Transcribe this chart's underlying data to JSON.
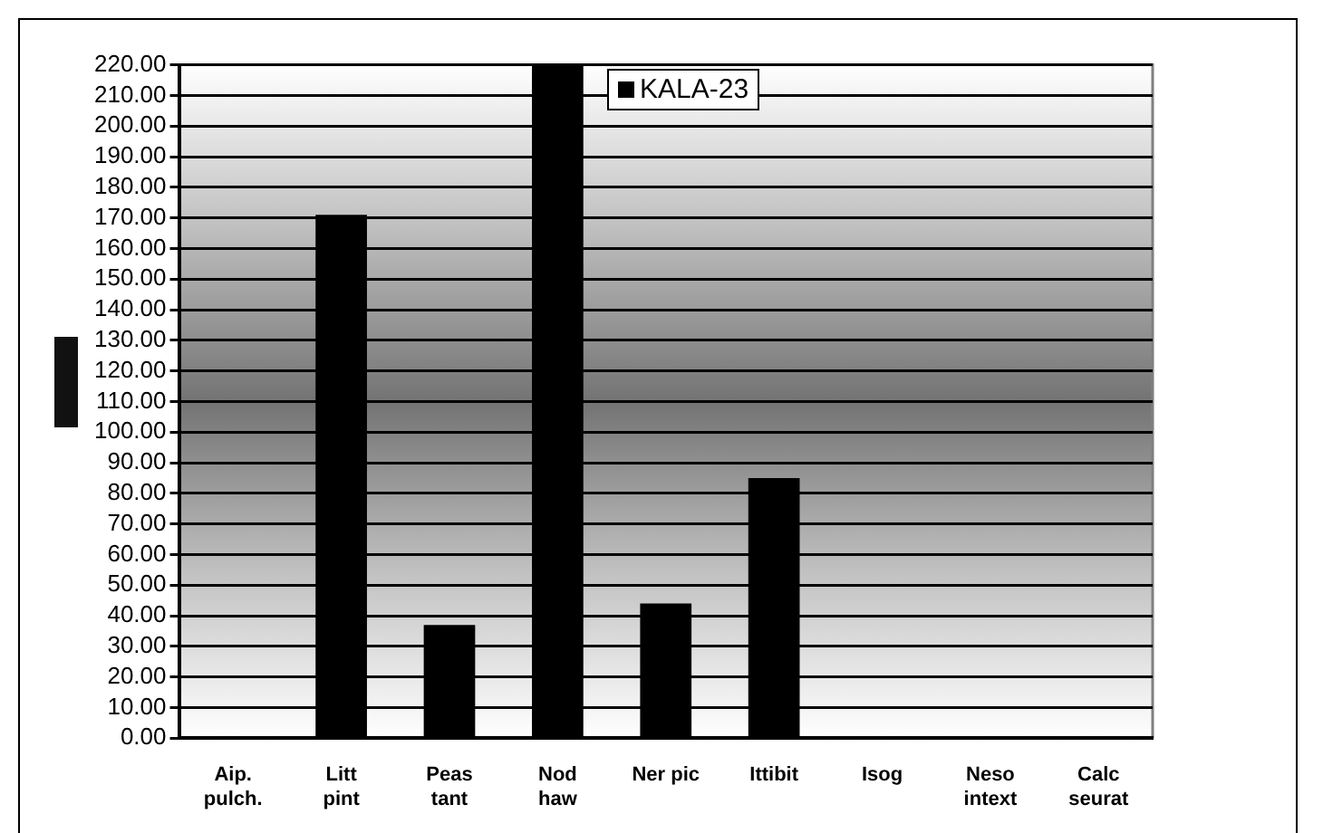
{
  "chart_data": {
    "type": "bar",
    "categories": [
      "Aip.\npulch.",
      "Litt\npint",
      "Peas\ntant",
      "Nod\nhaw",
      "Ner pic",
      "Ittibit",
      "Isog",
      "Neso\nintext",
      "Calc\nseurat"
    ],
    "series": [
      {
        "name": "KALA-23",
        "color": "#000000",
        "values": [
          0,
          171,
          37,
          220,
          44,
          85,
          0,
          0,
          0
        ]
      }
    ],
    "ylim": [
      0,
      220
    ],
    "yticks": [
      {
        "value": 0,
        "label": "0.00"
      },
      {
        "value": 10,
        "label": "10.00"
      },
      {
        "value": 20,
        "label": "20.00"
      },
      {
        "value": 30,
        "label": "30.00"
      },
      {
        "value": 40,
        "label": "40.00"
      },
      {
        "value": 50,
        "label": "50.00"
      },
      {
        "value": 60,
        "label": "60.00"
      },
      {
        "value": 70,
        "label": "70.00"
      },
      {
        "value": 80,
        "label": "80.00"
      },
      {
        "value": 90,
        "label": "90.00"
      },
      {
        "value": 100,
        "label": "100.00"
      },
      {
        "value": 110,
        "label": "110.00"
      },
      {
        "value": 120,
        "label": "120.00"
      },
      {
        "value": 130,
        "label": "130.00"
      },
      {
        "value": 140,
        "label": "140.00"
      },
      {
        "value": 150,
        "label": "150.00"
      },
      {
        "value": 160,
        "label": "160.00"
      },
      {
        "value": 170,
        "label": "170.00"
      },
      {
        "value": 180,
        "label": "180.00"
      },
      {
        "value": 190,
        "label": "190.00"
      },
      {
        "value": 200,
        "label": "200.00"
      },
      {
        "value": 210,
        "label": "210.00"
      },
      {
        "value": 220,
        "label": "220.00"
      }
    ],
    "grid": "y",
    "legend": "top"
  }
}
